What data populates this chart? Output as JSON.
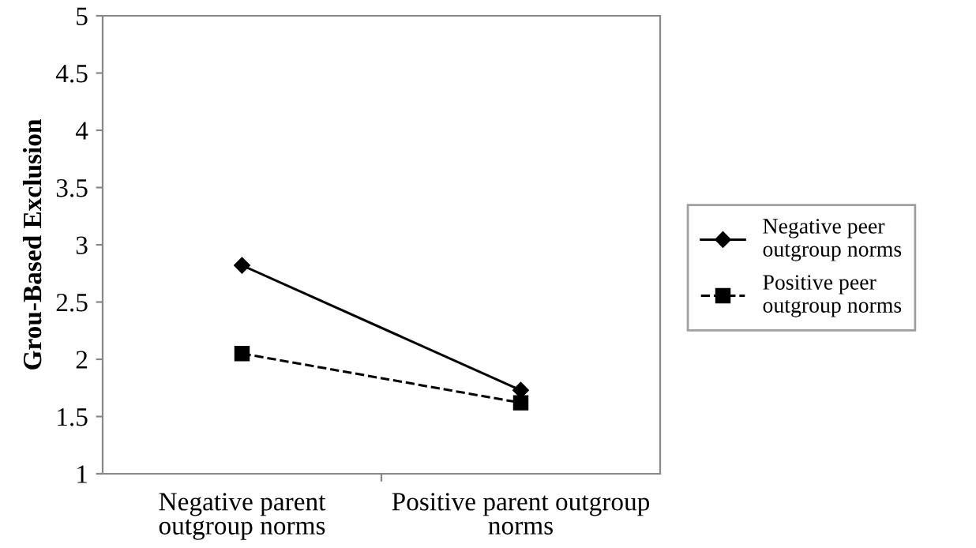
{
  "chart_data": {
    "type": "line",
    "ylabel": "Grou-Based Exclusion",
    "categories": [
      "Negative parent outgroup norms",
      "Positive parent outgroup norms"
    ],
    "series": [
      {
        "name": "Negative peer outgroup norms",
        "color": "#000000",
        "values": [
          2.82,
          1.73
        ],
        "marker": "diamond",
        "line_style": "solid"
      },
      {
        "name": "Positive peer outgroup norms",
        "color": "#000000",
        "values": [
          2.05,
          1.62
        ],
        "marker": "square",
        "line_style": "dashed"
      }
    ],
    "ylim": [
      1,
      5
    ],
    "yticks": [
      1,
      1.5,
      2,
      2.5,
      3,
      3.5,
      4,
      4.5,
      5
    ],
    "grid": false,
    "legend": "right"
  }
}
